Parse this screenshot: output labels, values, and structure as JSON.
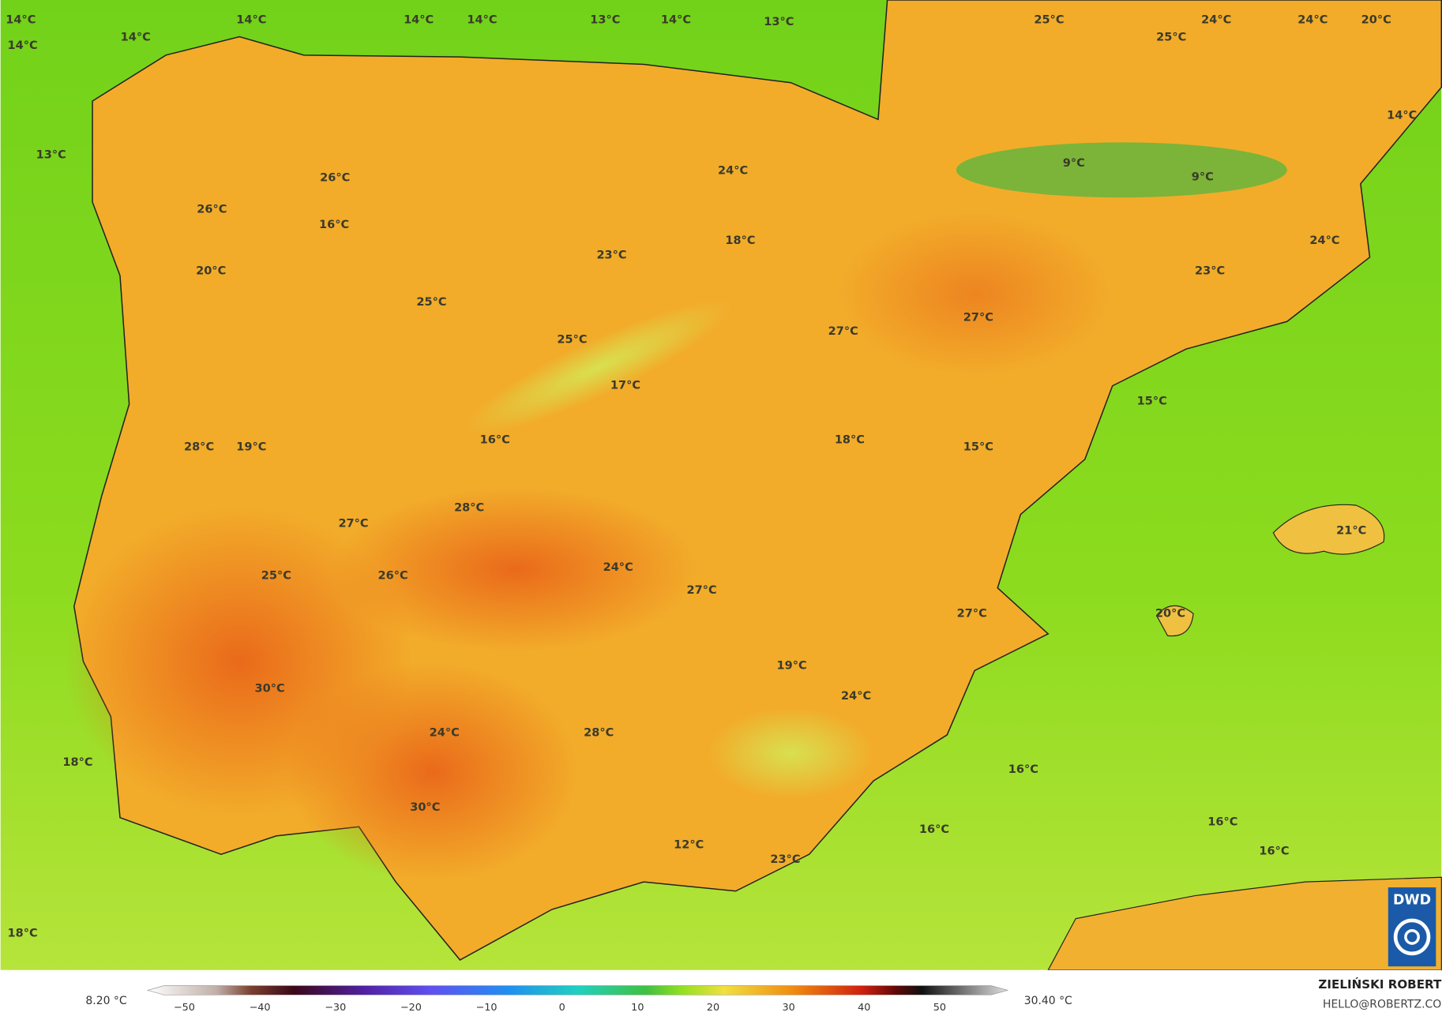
{
  "map": {
    "temperature_labels": [
      "14°C",
      "14°C",
      "14°C",
      "14°C",
      "14°C",
      "14°C",
      "13°C",
      "14°C",
      "13°C",
      "25°C",
      "25°C",
      "24°C",
      "24°C",
      "20°C",
      "14°C",
      "13°C",
      "26°C",
      "24°C",
      "9°C",
      "9°C",
      "26°C",
      "16°C",
      "18°C",
      "23°C",
      "24°C",
      "20°C",
      "23°C",
      "25°C",
      "27°C",
      "27°C",
      "25°C",
      "17°C",
      "15°C",
      "18°C",
      "16°C",
      "15°C",
      "28°C",
      "19°C",
      "28°C",
      "27°C",
      "21°C",
      "25°C",
      "26°C",
      "24°C",
      "27°C",
      "20°C",
      "27°C",
      "19°C",
      "30°C",
      "24°C",
      "24°C",
      "28°C",
      "18°C",
      "16°C",
      "30°C",
      "16°C",
      "16°C",
      "16°C",
      "12°C",
      "23°C",
      "18°C"
    ]
  },
  "colorbar": {
    "min_label": "8.20 °C",
    "max_label": "30.40 °C",
    "ticks": [
      "−50",
      "−40",
      "−30",
      "−20",
      "−10",
      "0",
      "10",
      "20",
      "30",
      "40",
      "50"
    ]
  },
  "credits": {
    "author": "ZIELIŃSKI ROBERT",
    "contact": "HELLO@ROBERTZ.CO",
    "logo": "DWD"
  }
}
